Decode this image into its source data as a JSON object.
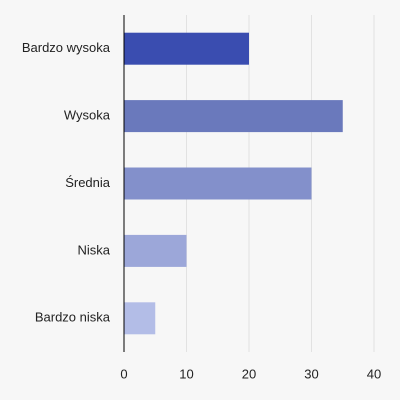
{
  "chart_data": {
    "type": "bar",
    "orientation": "horizontal",
    "categories": [
      "Bardzo wysoka",
      "Wysoka",
      "Średnia",
      "Niska",
      "Bardzo niska"
    ],
    "values": [
      20,
      35,
      30,
      10,
      5
    ],
    "colors": [
      "#3a4db0",
      "#6a79bc",
      "#8390cb",
      "#9ca7d9",
      "#b3bde7"
    ],
    "xlim": [
      0,
      40
    ],
    "xticks": [
      0,
      10,
      20,
      30,
      40
    ],
    "grid": true
  }
}
